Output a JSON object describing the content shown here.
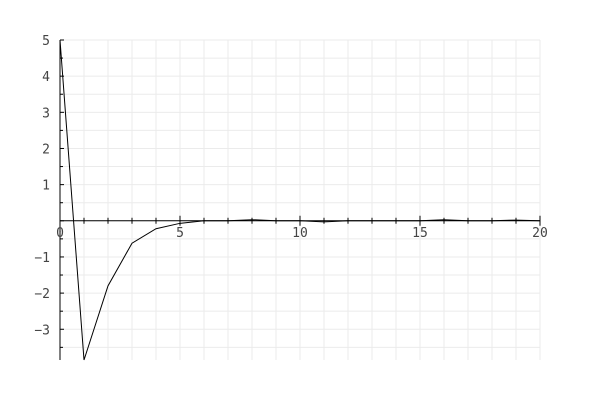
{
  "chart_data": {
    "type": "line",
    "title": "",
    "xlabel": "",
    "ylabel": "",
    "xlim": [
      0,
      20
    ],
    "ylim": [
      -3.85,
      5
    ],
    "grid": true,
    "legend": "none",
    "x_ticks": [
      0,
      5,
      10,
      15,
      20
    ],
    "y_ticks": [
      -3,
      -2,
      -1,
      1,
      2,
      3,
      4,
      5
    ],
    "series": [
      {
        "color": "#000000",
        "x": [
          0,
          1,
          2,
          3,
          4,
          5,
          6,
          7,
          8,
          9,
          10,
          11,
          12,
          13,
          14,
          15,
          16,
          17,
          18,
          19,
          20
        ],
        "y": [
          5.0,
          -3.85,
          -1.8,
          -0.62,
          -0.22,
          -0.07,
          0.0,
          0.0,
          0.03,
          0.0,
          0.0,
          -0.03,
          0.0,
          0.0,
          0.0,
          0.0,
          0.03,
          0.0,
          0.0,
          0.02,
          0.0
        ]
      }
    ]
  }
}
